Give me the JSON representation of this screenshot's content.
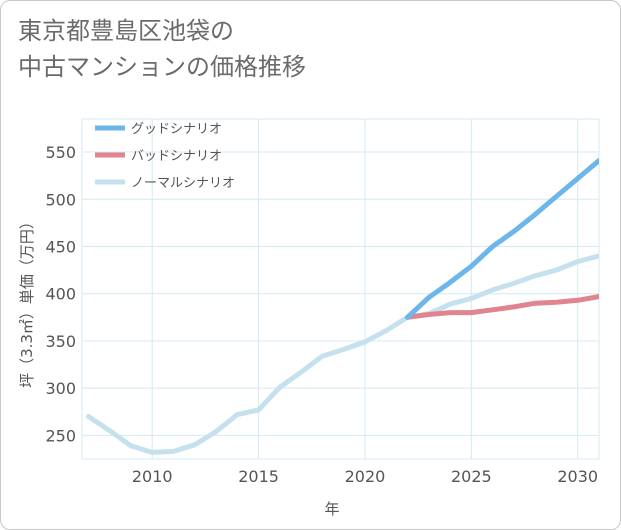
{
  "title_lines": [
    "東京都豊島区池袋の",
    "中古マンションの価格推移"
  ],
  "chart_data": {
    "type": "line",
    "title": "東京都豊島区池袋の中古マンションの価格推移",
    "xlabel": "年",
    "ylabel": "坪（3.3㎡）単価（万円）",
    "xlim": [
      2006.7,
      2031
    ],
    "ylim": [
      225,
      585
    ],
    "x_ticks": [
      2010,
      2015,
      2020,
      2025,
      2030
    ],
    "y_ticks": [
      250,
      300,
      350,
      400,
      450,
      500,
      550
    ],
    "x_tick_labels": [
      "2010",
      "2015",
      "2020",
      "2025",
      "2030"
    ],
    "y_tick_labels": [
      "250",
      "300",
      "350",
      "400",
      "450",
      "500",
      "550"
    ],
    "grid": true,
    "legend_position": "top-left",
    "series": [
      {
        "name": "ノーマルシナリオ",
        "color": "#c5e1ee",
        "x": [
          2007,
          2008,
          2009,
          2010,
          2011,
          2012,
          2013,
          2014,
          2015,
          2016,
          2017,
          2018,
          2019,
          2020,
          2021,
          2022,
          2023,
          2024,
          2025,
          2026,
          2027,
          2028,
          2029,
          2030,
          2031
        ],
        "values": [
          270,
          255,
          239,
          232,
          233,
          240,
          254,
          272,
          277,
          301,
          317,
          334,
          341,
          349,
          361,
          375,
          379,
          389,
          395,
          404,
          411,
          419,
          425,
          434,
          440
        ]
      },
      {
        "name": "バッドシナリオ",
        "color": "#e0848f",
        "x": [
          2022,
          2023,
          2024,
          2025,
          2026,
          2027,
          2028,
          2029,
          2030,
          2031
        ],
        "values": [
          375,
          378,
          380,
          380,
          383,
          386,
          390,
          391,
          393,
          397
        ]
      },
      {
        "name": "グッドシナリオ",
        "color": "#6cb6ea",
        "x": [
          2022,
          2023,
          2024,
          2025,
          2026,
          2027,
          2028,
          2029,
          2030,
          2031
        ],
        "values": [
          375,
          396,
          412,
          429,
          450,
          466,
          484,
          503,
          522,
          541
        ]
      }
    ],
    "legend": [
      {
        "name": "グッドシナリオ",
        "color": "#6cb6ea"
      },
      {
        "name": "バッドシナリオ",
        "color": "#e0848f"
      },
      {
        "name": "ノーマルシナリオ",
        "color": "#c5e1ee"
      }
    ],
    "colors": {
      "grid": "#d4e9f4",
      "axis_text": "#555555",
      "legend_text": "#555555"
    }
  }
}
